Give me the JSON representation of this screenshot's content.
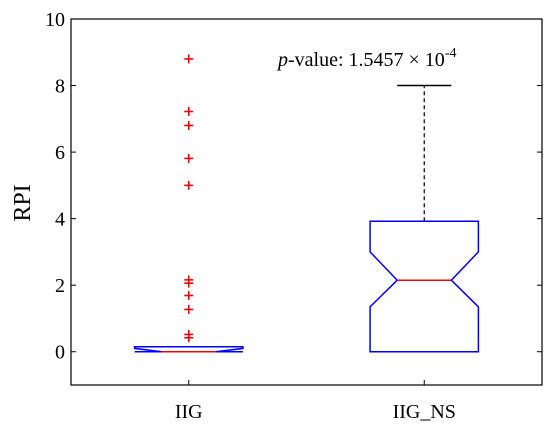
{
  "chart_data": {
    "type": "box",
    "ylabel": "RPI",
    "ylim": [
      -1,
      10
    ],
    "yticks": [
      0,
      2,
      4,
      6,
      8,
      10
    ],
    "categories": [
      "IIG",
      "IIG_NS"
    ],
    "notched": true,
    "colors": {
      "box": "#0000ff",
      "median": "#ff0000",
      "outlier": "#ff0000",
      "whisker": "#000000"
    },
    "boxes": [
      {
        "category": "IIG",
        "min": 0,
        "q1": 0,
        "median": 0,
        "q3": 0.15,
        "max": 0.15,
        "notch_low": 0,
        "notch_high": 0.1,
        "outliers": [
          0.42,
          0.52,
          1.27,
          1.69,
          2.06,
          2.16,
          5.0,
          5.81,
          6.8,
          7.22,
          8.8
        ]
      },
      {
        "category": "IIG_NS",
        "min": 0,
        "q1": 0,
        "median": 2.15,
        "q3": 3.92,
        "max": 8.0,
        "notch_low": 1.35,
        "notch_high": 3.0,
        "outliers": []
      }
    ],
    "annotation": {
      "p_letter": "p",
      "text": "-value: 1.5457 × 10",
      "exponent": "-4"
    }
  }
}
